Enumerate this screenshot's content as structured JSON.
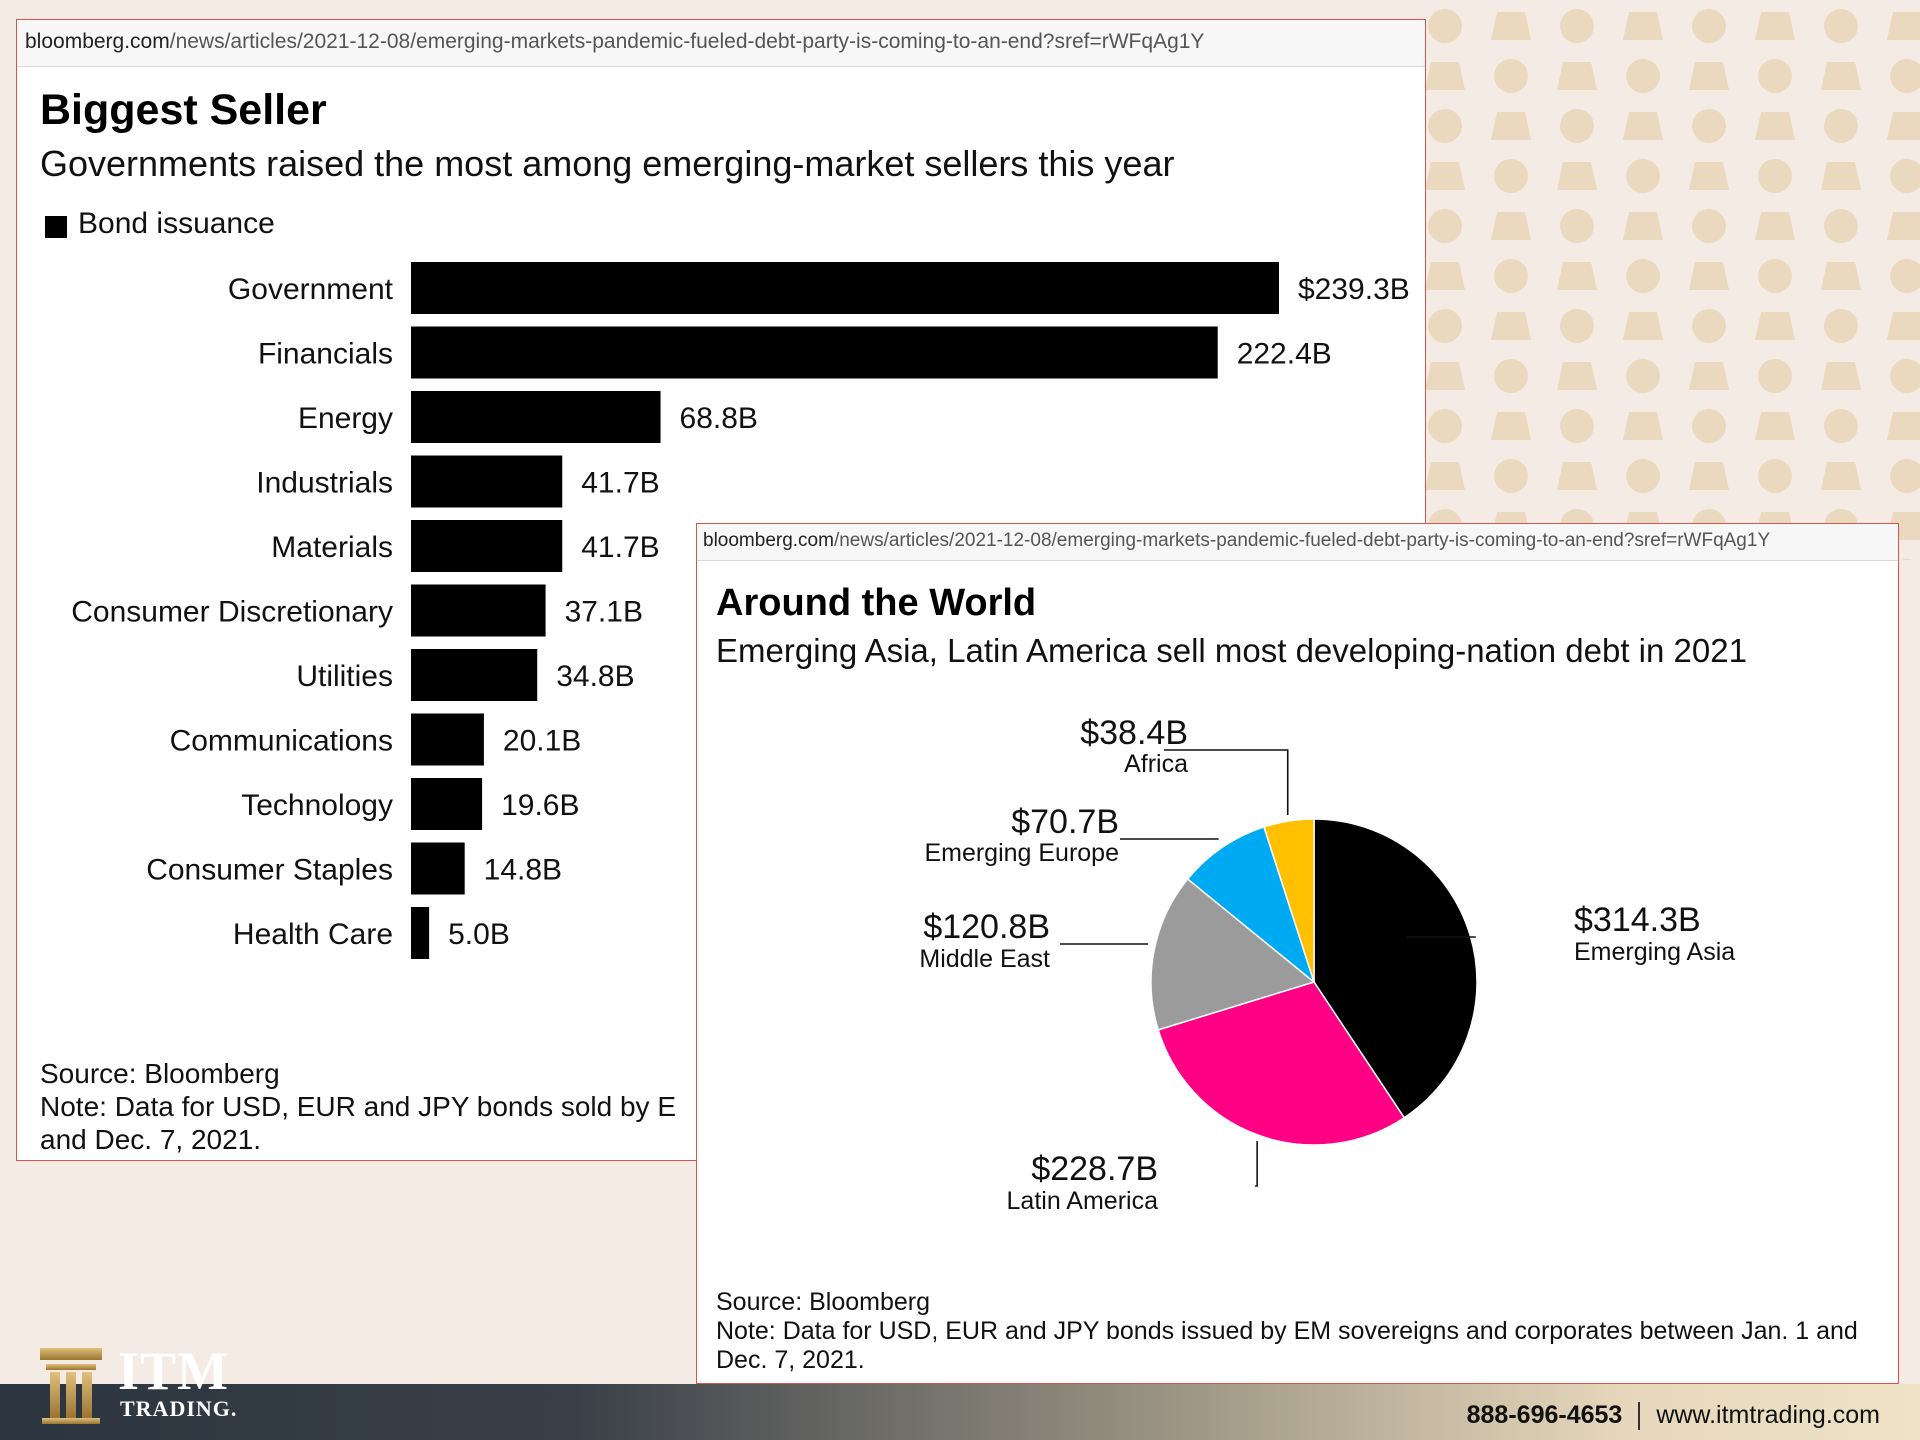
{
  "chart_data": [
    {
      "type": "bar",
      "title": "Biggest Seller",
      "subtitle": "Governments raised the most among emerging-market sellers this year",
      "legend": "Bond issuance",
      "categories": [
        "Government",
        "Financials",
        "Energy",
        "Industrials",
        "Materials",
        "Consumer Discretionary",
        "Utilities",
        "Communications",
        "Technology",
        "Consumer Staples",
        "Health Care"
      ],
      "values": [
        239.3,
        222.4,
        68.8,
        41.7,
        41.7,
        37.1,
        34.8,
        20.1,
        19.6,
        14.8,
        5.0
      ],
      "value_labels": [
        "$239.3B",
        "222.4B",
        "68.8B",
        "41.7B",
        "41.7B",
        "37.1B",
        "34.8B",
        "20.1B",
        "19.6B",
        "14.8B",
        "5.0B"
      ],
      "source": "Source: Bloomberg",
      "note_line1": "Note: Data for USD, EUR and JPY bonds sold by E",
      "note_line2": "and Dec. 7, 2021."
    },
    {
      "type": "pie",
      "title": "Around the World",
      "subtitle": "Emerging Asia, Latin America sell most developing-nation debt in 2021",
      "slices": [
        {
          "name": "Emerging Asia",
          "value": 314.3,
          "label": "$314.3B",
          "color": "#000000"
        },
        {
          "name": "Latin America",
          "value": 228.7,
          "label": "$228.7B",
          "color": "#ff0084"
        },
        {
          "name": "Middle East",
          "value": 120.8,
          "label": "$120.8B",
          "color": "#9b9b9b"
        },
        {
          "name": "Emerging Europe",
          "value": 70.7,
          "label": "$70.7B",
          "color": "#00aaf2"
        },
        {
          "name": "Africa",
          "value": 38.4,
          "label": "$38.4B",
          "color": "#ffc000"
        }
      ],
      "source": "Source: Bloomberg",
      "note_line1": "Note: Data for USD, EUR and JPY bonds issued by EM sovereigns and corporates between Jan. 1 and",
      "note_line2": "Dec. 7, 2021."
    }
  ],
  "url": {
    "host": "bloomberg.com",
    "path": "/news/articles/2021-12-08/emerging-markets-pandemic-fueled-debt-party-is-coming-to-an-end?sref=rWFqAg1Y"
  },
  "brand": {
    "line1": "ITM",
    "line2": "TRADING."
  },
  "contact": {
    "phone": "888-696-4653",
    "website": "www.itmtrading.com"
  },
  "colors": {
    "bar": "#000000",
    "card_border": "#d9534f",
    "background": "#f4ece4"
  }
}
